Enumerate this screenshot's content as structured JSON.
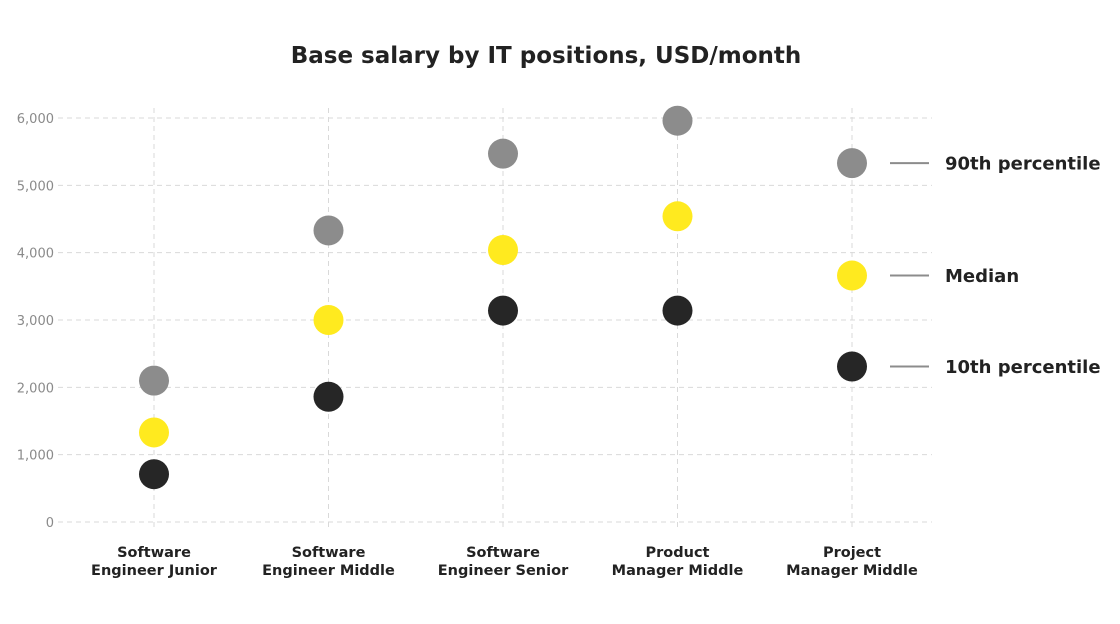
{
  "chart_data": {
    "type": "scatter",
    "title": "Base salary by IT positions, USD/month",
    "xlabel": "",
    "ylabel": "",
    "ylim": [
      0,
      6000
    ],
    "yticks": [
      0,
      1000,
      2000,
      3000,
      4000,
      5000,
      6000
    ],
    "ytick_labels": [
      "0",
      "1,000",
      "2,000",
      "3,000",
      "4,000",
      "5,000",
      "6,000"
    ],
    "grid": true,
    "legend_placement": "right",
    "categories": [
      [
        "Software",
        "Engineer Junior"
      ],
      [
        "Software",
        "Engineer Middle"
      ],
      [
        "Software",
        "Engineer Senior"
      ],
      [
        "Product",
        "Manager Middle"
      ],
      [
        "Project",
        "Manager Middle"
      ]
    ],
    "series": [
      {
        "name": "90th percentile",
        "color": "#8c8c8c",
        "values": [
          2100,
          4330,
          5470,
          5960,
          5330
        ]
      },
      {
        "name": "Median",
        "color": "#ffea1f",
        "values": [
          1330,
          3000,
          4040,
          4540,
          3660
        ]
      },
      {
        "name": "10th percentile",
        "color": "#262626",
        "values": [
          710,
          1860,
          3140,
          3140,
          2310
        ]
      }
    ]
  }
}
